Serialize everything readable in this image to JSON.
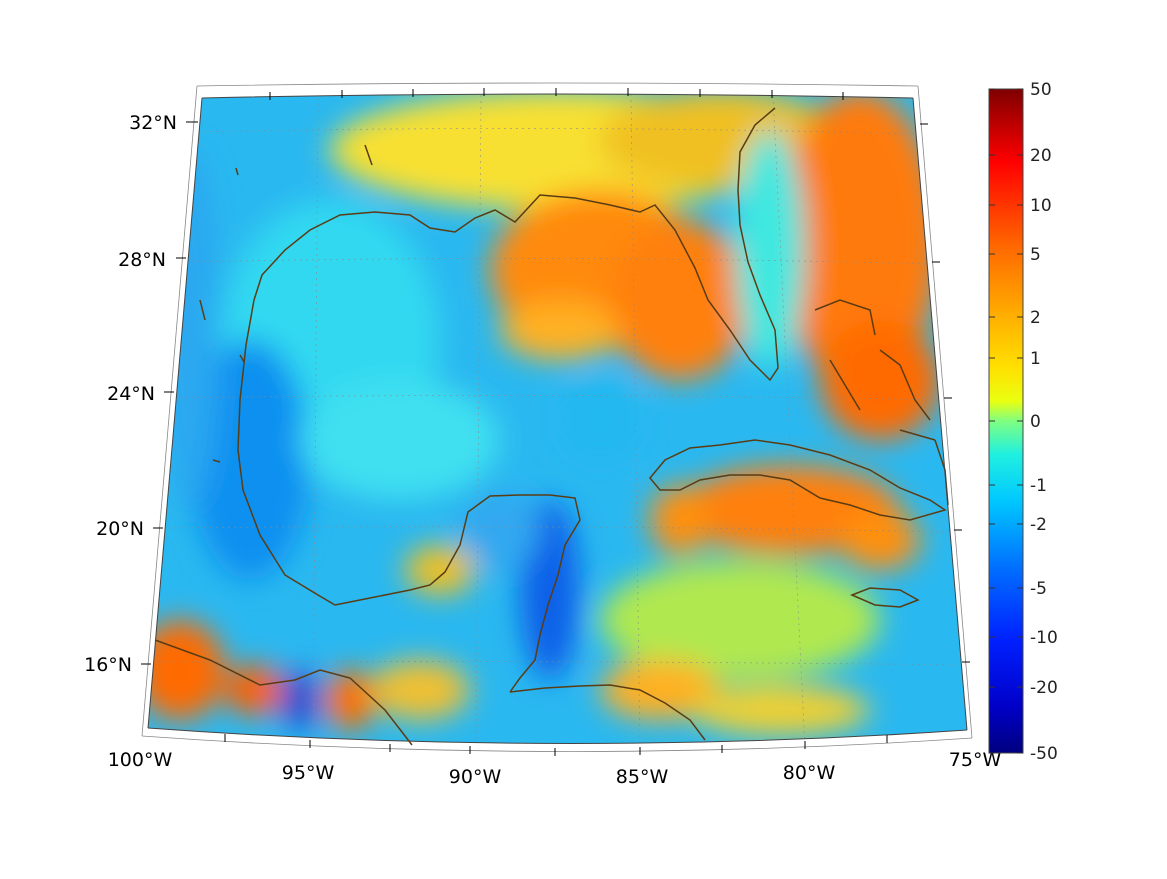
{
  "map": {
    "lat_labels": [
      "32°N",
      "28°N",
      "24°N",
      "20°N",
      "16°N"
    ],
    "lon_labels": [
      "100°W",
      "95°W",
      "90°W",
      "85°W",
      "80°W",
      "75°W"
    ],
    "lat_values": [
      32,
      28,
      24,
      20,
      16
    ],
    "lon_values": [
      -100,
      -95,
      -90,
      -85,
      -80,
      -75
    ],
    "extent": {
      "lon_min": -100,
      "lon_max": -75,
      "lat_min": 14,
      "lat_max": 33
    }
  },
  "colorbar": {
    "colormap": "jet",
    "tick_labels": [
      "50",
      "20",
      "10",
      "5",
      "2",
      "1",
      "0",
      "-1",
      "-2",
      "-5",
      "-10",
      "-20",
      "-50"
    ],
    "tick_values": [
      50,
      20,
      10,
      5,
      2,
      1,
      0,
      -1,
      -2,
      -5,
      -10,
      -20,
      -50
    ],
    "colors": [
      "#7f0000",
      "#ff0000",
      "#ff5a00",
      "#ff9a00",
      "#ffd000",
      "#eef000",
      "#7fff7f",
      "#28f0d8",
      "#00c8ff",
      "#0070ff",
      "#0028ff",
      "#0000c8",
      "#00007f"
    ]
  },
  "coastline_color": "#5a3c14"
}
